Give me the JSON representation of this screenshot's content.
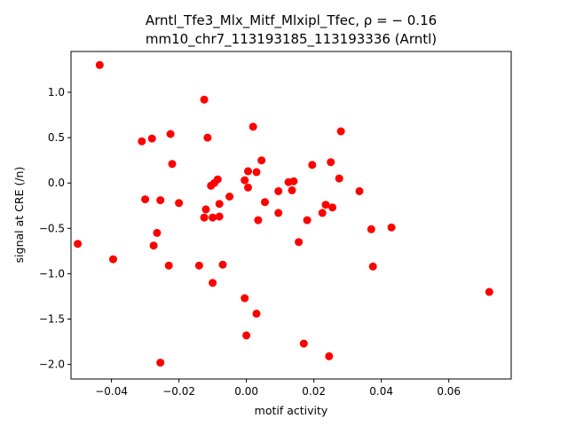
{
  "chart_data": {
    "type": "scatter",
    "title_line1": "Arntl_Tfe3_Mlx_Mitf_Mlxipl_Tfec, ρ = − 0.16",
    "title_line2": "mm10_chr7_113193185_113193336 (Arntl)",
    "xlabel": "motif activity",
    "ylabel": "signal at CRE (/n)",
    "xlim": [
      -0.052,
      0.0785
    ],
    "ylim": [
      -2.16,
      1.45
    ],
    "xticks": [
      -0.04,
      -0.02,
      0.0,
      0.02,
      0.04,
      0.06
    ],
    "xtick_labels": [
      "−0.04",
      "−0.02",
      "0.00",
      "0.02",
      "0.04",
      "0.06"
    ],
    "yticks": [
      1.0,
      0.5,
      0.0,
      -0.5,
      -1.0,
      -1.5,
      -2.0
    ],
    "ytick_labels": [
      "1.0",
      "0.5",
      "0.0",
      "−0.5",
      "−1.0",
      "−1.5",
      "−2.0"
    ],
    "grid": false,
    "marker_color": "#ff0000",
    "points": [
      {
        "x": -0.0435,
        "y": 1.3
      },
      {
        "x": -0.05,
        "y": -0.67
      },
      {
        "x": -0.0395,
        "y": -0.84
      },
      {
        "x": -0.031,
        "y": 0.46
      },
      {
        "x": -0.028,
        "y": 0.49
      },
      {
        "x": -0.03,
        "y": -0.18
      },
      {
        "x": -0.0275,
        "y": -0.69
      },
      {
        "x": -0.0265,
        "y": -0.55
      },
      {
        "x": -0.0255,
        "y": -0.19
      },
      {
        "x": -0.0255,
        "y": -1.98
      },
      {
        "x": -0.023,
        "y": -0.91
      },
      {
        "x": -0.0225,
        "y": 0.54
      },
      {
        "x": -0.022,
        "y": 0.21
      },
      {
        "x": -0.02,
        "y": -0.22
      },
      {
        "x": -0.014,
        "y": -0.91
      },
      {
        "x": -0.0125,
        "y": 0.92
      },
      {
        "x": -0.0125,
        "y": -0.38
      },
      {
        "x": -0.012,
        "y": -0.29
      },
      {
        "x": -0.0115,
        "y": 0.5
      },
      {
        "x": -0.0105,
        "y": -0.03
      },
      {
        "x": -0.01,
        "y": -0.38
      },
      {
        "x": -0.01,
        "y": -1.1
      },
      {
        "x": -0.0095,
        "y": 0.0
      },
      {
        "x": -0.0085,
        "y": 0.04
      },
      {
        "x": -0.008,
        "y": -0.23
      },
      {
        "x": -0.008,
        "y": -0.37
      },
      {
        "x": -0.007,
        "y": -0.9
      },
      {
        "x": -0.005,
        "y": -0.15
      },
      {
        "x": -0.0005,
        "y": 0.03
      },
      {
        "x": -0.0005,
        "y": -1.27
      },
      {
        "x": 0.0,
        "y": -1.68
      },
      {
        "x": 0.0005,
        "y": -0.05
      },
      {
        "x": 0.0005,
        "y": 0.13
      },
      {
        "x": 0.002,
        "y": 0.62
      },
      {
        "x": 0.003,
        "y": 0.12
      },
      {
        "x": 0.003,
        "y": -1.44
      },
      {
        "x": 0.0035,
        "y": -0.41
      },
      {
        "x": 0.0045,
        "y": 0.25
      },
      {
        "x": 0.0055,
        "y": -0.21
      },
      {
        "x": 0.0095,
        "y": -0.09
      },
      {
        "x": 0.0095,
        "y": -0.33
      },
      {
        "x": 0.0125,
        "y": 0.01
      },
      {
        "x": 0.0135,
        "y": -0.08
      },
      {
        "x": 0.014,
        "y": 0.02
      },
      {
        "x": 0.0155,
        "y": -0.65
      },
      {
        "x": 0.017,
        "y": -1.77
      },
      {
        "x": 0.018,
        "y": -0.41
      },
      {
        "x": 0.0195,
        "y": 0.2
      },
      {
        "x": 0.0225,
        "y": -0.33
      },
      {
        "x": 0.0235,
        "y": -0.24
      },
      {
        "x": 0.0245,
        "y": -1.91
      },
      {
        "x": 0.025,
        "y": 0.23
      },
      {
        "x": 0.0255,
        "y": -0.27
      },
      {
        "x": 0.0275,
        "y": 0.05
      },
      {
        "x": 0.028,
        "y": 0.57
      },
      {
        "x": 0.0335,
        "y": -0.09
      },
      {
        "x": 0.037,
        "y": -0.51
      },
      {
        "x": 0.0375,
        "y": -0.92
      },
      {
        "x": 0.043,
        "y": -0.49
      },
      {
        "x": 0.072,
        "y": -1.2
      }
    ]
  }
}
